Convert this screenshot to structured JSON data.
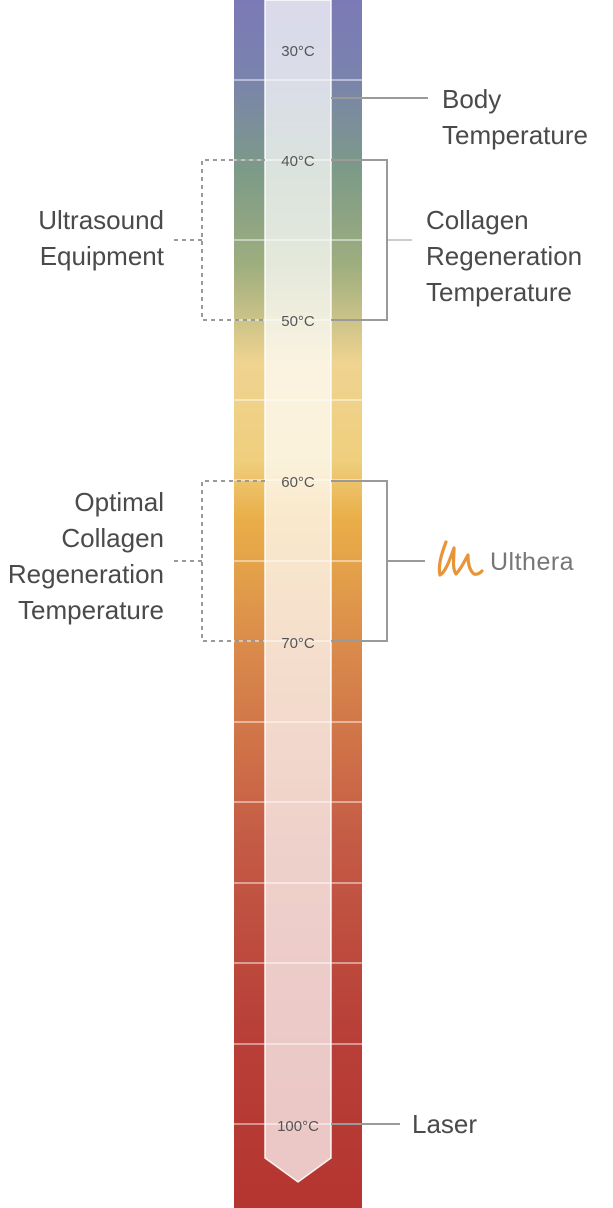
{
  "thermometer": {
    "ticks": [
      "30°C",
      "40°C",
      "50°C",
      "60°C",
      "70°C",
      "100°C"
    ]
  },
  "labels": {
    "body_temperature": [
      "Body",
      "Temperature"
    ],
    "collagen_regeneration": [
      "Collagen",
      "Regeneration",
      "Temperature"
    ],
    "ultrasound_equipment": [
      "Ultrasound",
      "Equipment"
    ],
    "optimal_collagen": [
      "Optimal",
      "Collagen",
      "Regeneration",
      "Temperature"
    ],
    "laser": "Laser"
  },
  "logo": {
    "text": "Ulthera",
    "mark_color": "#e8953a",
    "text_color": "#777777"
  },
  "colors": {
    "top": "#7b7ab8",
    "green": "#7a9a7a",
    "yellow": "#efd38a",
    "orange": "#e8aa45",
    "red": "#b53a33"
  }
}
